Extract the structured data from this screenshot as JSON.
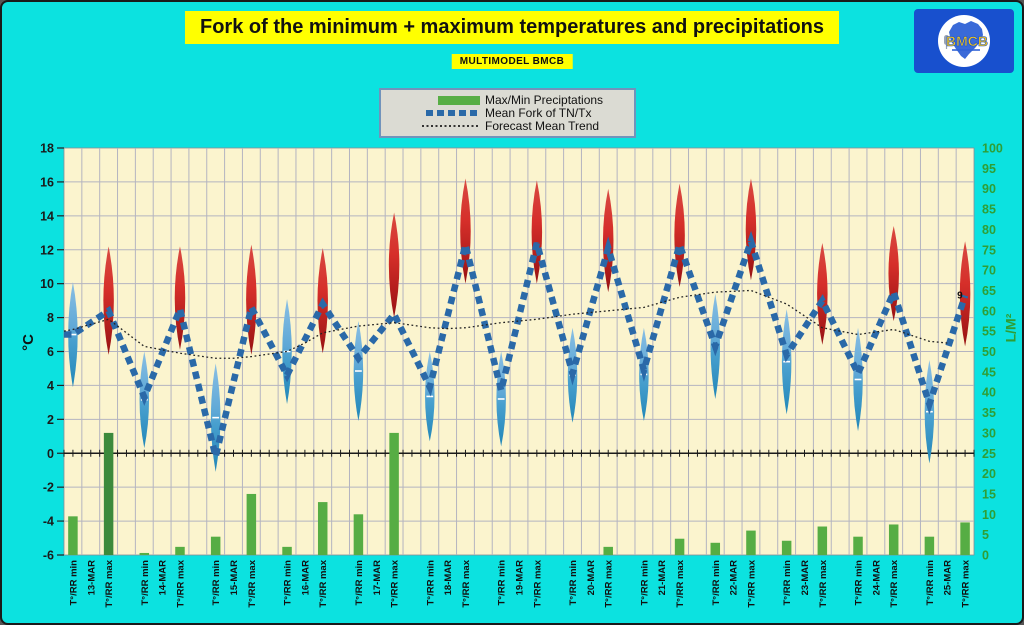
{
  "page": {
    "title": "Fork of the minimum + maximum temperatures and precipitations",
    "subtitle": "MULTIMODEL BMCB",
    "background": "#0CE2E0"
  },
  "logo": {
    "text": "BMCB",
    "box_color": "#1850CE",
    "text_color": "#F5C518"
  },
  "legend": {
    "items": [
      {
        "label": "Max/Min Preciptations",
        "type": "bar",
        "color": "#57AE45"
      },
      {
        "label": "Mean Fork of TN/Tx",
        "type": "dashed",
        "color": "#2A69A8"
      },
      {
        "label": "Forecast Mean Trend",
        "type": "dotted",
        "color": "#333333"
      }
    ]
  },
  "axes": {
    "left_title": "°C",
    "left_min": -6,
    "left_max": 18,
    "left_step": 2,
    "right_title": "L/M²",
    "right_min": 0,
    "right_max": 100,
    "right_step": 5,
    "x_min_label": "T°/RR min",
    "x_max_label": "T°/RR max"
  },
  "chart_data": {
    "type": "bar",
    "description": "mixed chart: precipitation bars (right axis L/M²) + temperature fork lenses, dashed mean line and dotted trend (left axis °C)",
    "colors": {
      "bar": "#56AD44",
      "bar_dark": "#3C8A3C",
      "mean_line": "#2A69A8",
      "trend_line": "#222222",
      "grid": "#B4B4C0",
      "plot_bg": "#FBF4CE",
      "left_text": "#1A1A1A",
      "right_text": "#2F9E35"
    },
    "mean_line_start": 7.0,
    "trend_line_start": 7.2,
    "annotation": {
      "text": "9",
      "value": 9.3
    },
    "days": [
      {
        "date": "13-MAR",
        "mean_min": 7.0,
        "mean_max": 8.4,
        "fork_min": [
          3.9,
          10.1
        ],
        "fork_max": [
          5.8,
          12.2
        ],
        "rain_min": 9.5,
        "rain_max": 30,
        "rain_max_shade": "dark",
        "trend": [
          7.3,
          7.6,
          7.9
        ]
      },
      {
        "date": "14-MAR",
        "mean_min": 3.3,
        "mean_max": 8.5,
        "fork_min": [
          0.3,
          6.0
        ],
        "fork_max": [
          6.1,
          12.2
        ],
        "rain_min": 0.5,
        "rain_max": 2,
        "trend": [
          6.3,
          6.1,
          5.9
        ]
      },
      {
        "date": "15-MAR",
        "mean_min": -0.2,
        "mean_max": 8.6,
        "fork_min": [
          -1.1,
          5.3
        ],
        "fork_max": [
          5.8,
          12.3
        ],
        "rain_min": 4.5,
        "rain_max": 15,
        "trend": [
          5.6,
          5.6,
          5.7
        ]
      },
      {
        "date": "16-MAR",
        "mean_min": 4.6,
        "mean_max": 8.8,
        "fork_min": [
          2.9,
          9.1
        ],
        "fork_max": [
          5.9,
          12.1
        ],
        "rain_min": 2,
        "rain_max": 13,
        "trend": [
          6.0,
          6.5,
          7.1
        ]
      },
      {
        "date": "17-MAR",
        "mean_min": 5.6,
        "mean_max": 8.2,
        "fork_min": [
          1.9,
          7.8
        ],
        "fork_max": [
          8.0,
          14.2
        ],
        "rain_min": 10,
        "rain_max": 30,
        "trend": [
          7.5,
          7.6,
          7.7
        ]
      },
      {
        "date": "18-MAR",
        "mean_min": 3.9,
        "mean_max": 12.3,
        "fork_min": [
          0.7,
          6.0
        ],
        "fork_max": [
          10.0,
          16.2
        ],
        "rain_min": 0,
        "rain_max": 0,
        "trend": [
          7.4,
          7.35,
          7.4
        ]
      },
      {
        "date": "19-MAR",
        "mean_min": 3.7,
        "mean_max": 12.4,
        "fork_min": [
          0.4,
          6.0
        ],
        "fork_max": [
          10.0,
          16.1
        ],
        "rain_min": 0,
        "rain_max": 0,
        "trend": [
          7.7,
          7.8,
          7.9
        ]
      },
      {
        "date": "20-MAR",
        "mean_min": 4.7,
        "mean_max": 12.1,
        "fork_min": [
          1.8,
          7.4
        ],
        "fork_max": [
          9.5,
          15.6
        ],
        "rain_min": 0,
        "rain_max": 2,
        "trend": [
          8.2,
          8.3,
          8.4
        ]
      },
      {
        "date": "21-MAR",
        "mean_min": 4.9,
        "mean_max": 12.3,
        "fork_min": [
          1.9,
          7.4
        ],
        "fork_max": [
          9.8,
          15.9
        ],
        "rain_min": 0,
        "rain_max": 4,
        "trend": [
          8.6,
          8.9,
          9.2
        ]
      },
      {
        "date": "22-MAR",
        "mean_min": 6.3,
        "mean_max": 12.5,
        "fork_min": [
          3.2,
          9.4
        ],
        "fork_max": [
          10.2,
          16.2
        ],
        "rain_min": 3,
        "rain_max": 6,
        "trend": [
          9.5,
          9.55,
          9.6
        ]
      },
      {
        "date": "23-MAR",
        "mean_min": 5.8,
        "mean_max": 9.0,
        "fork_min": [
          2.3,
          8.5
        ],
        "fork_max": [
          6.4,
          12.4
        ],
        "rain_min": 3.5,
        "rain_max": 7,
        "trend": [
          8.8,
          8.1,
          7.4
        ]
      },
      {
        "date": "24-MAR",
        "mean_min": 4.7,
        "mean_max": 9.5,
        "fork_min": [
          1.3,
          7.4
        ],
        "fork_max": [
          7.8,
          13.4
        ],
        "rain_min": 4.5,
        "rain_max": 7.5,
        "trend": [
          7.0,
          7.15,
          7.3
        ]
      },
      {
        "date": "25-MAR",
        "mean_min": 2.9,
        "mean_max": 9.3,
        "fork_min": [
          -0.6,
          5.5
        ],
        "fork_max": [
          6.3,
          12.5
        ],
        "rain_min": 4.5,
        "rain_max": 8,
        "trend": [
          6.6,
          6.5,
          null
        ]
      }
    ]
  }
}
